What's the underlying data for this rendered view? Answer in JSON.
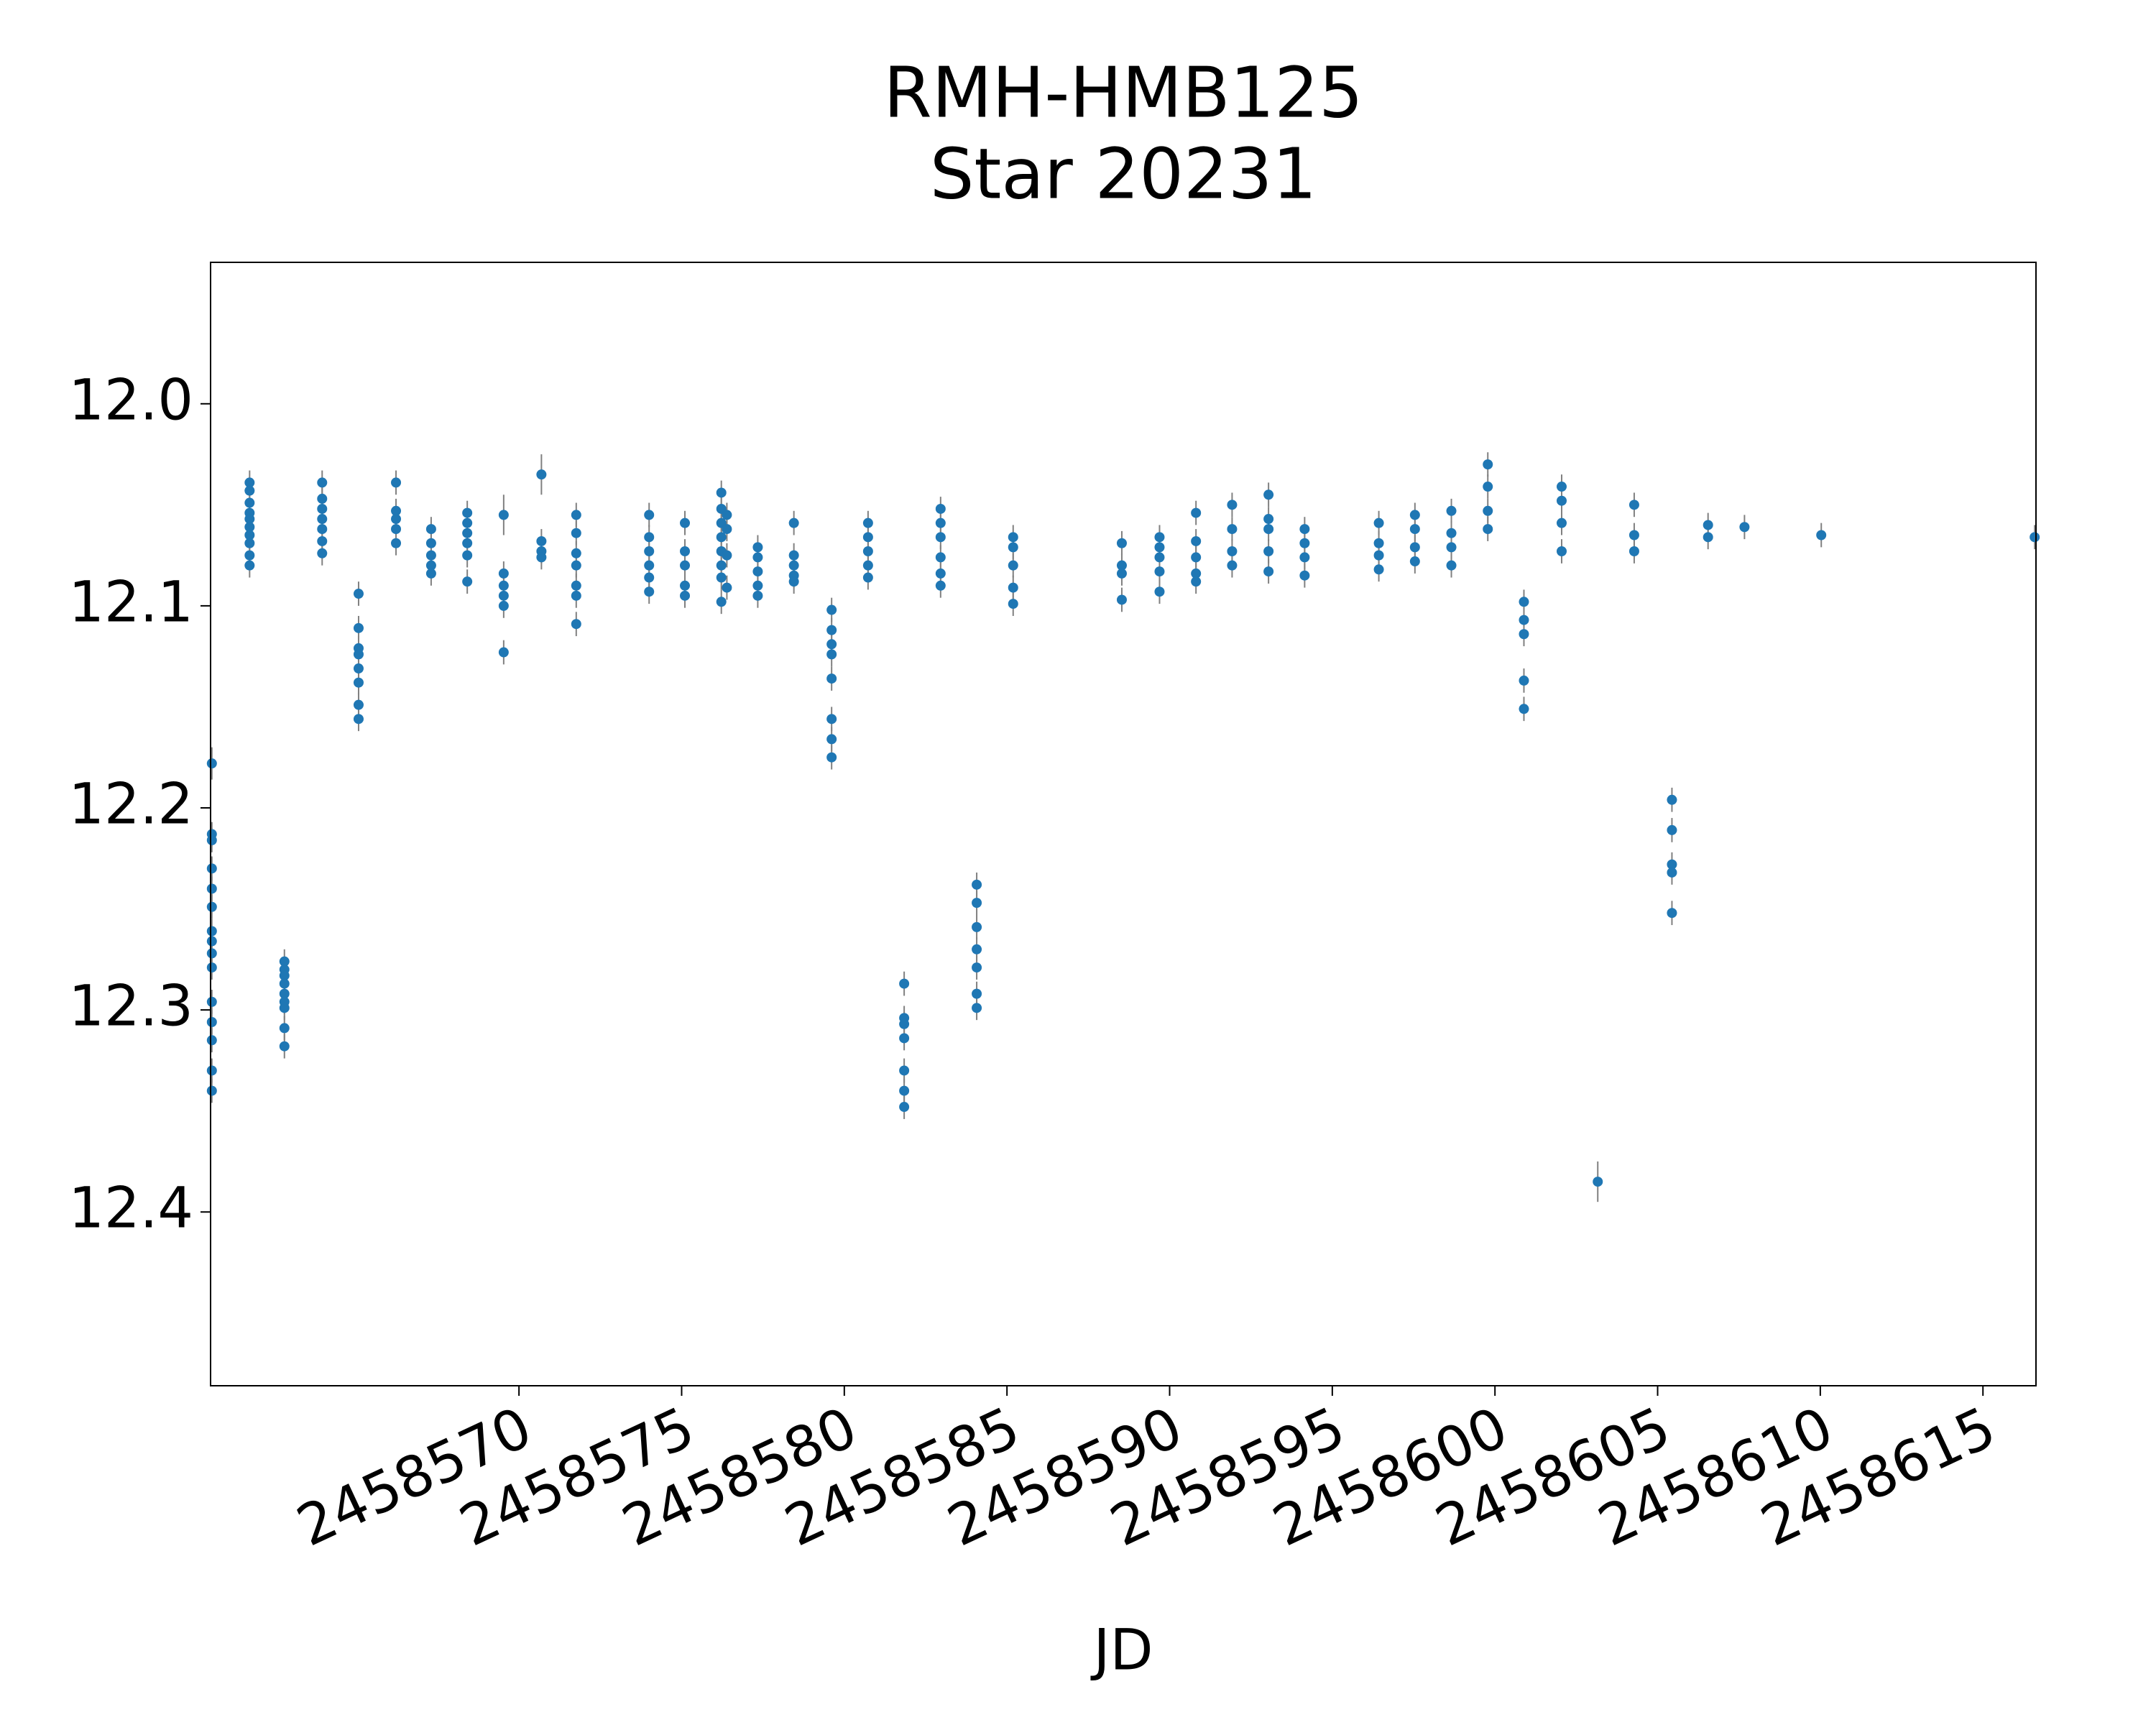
{
  "chart_data": {
    "type": "errorbar-scatter",
    "title": [
      "RMH-HMB125",
      "Star 20231"
    ],
    "x_label": "JD",
    "xlim": [
      2458560.52,
      2458616.63
    ],
    "xticks": [
      2458570,
      2458575,
      2458580,
      2458585,
      2458590,
      2458595,
      2458600,
      2458605,
      2458610,
      2458615
    ],
    "ylim": [
      12.486,
      11.93
    ],
    "yticks": [
      12.0,
      12.1,
      12.2,
      12.3,
      12.4
    ],
    "yticklabels": [
      "12.0",
      "12.1",
      "12.2",
      "12.3",
      "12.4"
    ],
    "grid": false,
    "series": [
      {
        "color": "#1f77b4",
        "error_color": "#808080",
        "x": [
          2458560.56,
          2458560.56,
          2458560.56,
          2458560.56,
          2458560.56,
          2458560.56,
          2458560.56,
          2458560.56,
          2458560.56,
          2458560.56,
          2458560.56,
          2458560.56,
          2458560.56,
          2458560.56,
          2458560.56,
          2458561.72,
          2458561.72,
          2458561.72,
          2458561.72,
          2458561.72,
          2458561.72,
          2458561.72,
          2458561.72,
          2458561.72,
          2458561.72,
          2458562.79,
          2458562.79,
          2458562.79,
          2458562.79,
          2458562.79,
          2458562.79,
          2458562.79,
          2458562.79,
          2458562.79,
          2458563.95,
          2458563.95,
          2458563.95,
          2458563.95,
          2458563.95,
          2458563.95,
          2458563.95,
          2458565.07,
          2458565.07,
          2458565.07,
          2458565.07,
          2458565.07,
          2458565.07,
          2458565.07,
          2458565.07,
          2458566.22,
          2458566.22,
          2458566.22,
          2458566.22,
          2458566.22,
          2458567.3,
          2458567.3,
          2458567.3,
          2458567.3,
          2458567.3,
          2458568.41,
          2458568.41,
          2458568.41,
          2458568.41,
          2458568.41,
          2458568.41,
          2458569.53,
          2458569.53,
          2458569.53,
          2458569.53,
          2458569.53,
          2458569.53,
          2458570.69,
          2458570.69,
          2458570.69,
          2458570.69,
          2458571.76,
          2458571.76,
          2458571.76,
          2458571.76,
          2458571.76,
          2458571.76,
          2458571.76,
          2458574.0,
          2458574.0,
          2458574.0,
          2458574.0,
          2458574.0,
          2458574.0,
          2458575.1,
          2458575.1,
          2458575.1,
          2458575.1,
          2458575.1,
          2458576.22,
          2458576.22,
          2458576.22,
          2458576.22,
          2458576.22,
          2458576.22,
          2458576.22,
          2458576.22,
          2458576.39,
          2458576.39,
          2458576.39,
          2458576.39,
          2458577.34,
          2458577.34,
          2458577.34,
          2458577.34,
          2458577.34,
          2458578.45,
          2458578.45,
          2458578.45,
          2458578.45,
          2458578.45,
          2458579.61,
          2458579.61,
          2458579.61,
          2458579.61,
          2458579.61,
          2458579.61,
          2458579.61,
          2458579.61,
          2458580.73,
          2458580.73,
          2458580.73,
          2458580.73,
          2458580.73,
          2458581.84,
          2458581.84,
          2458581.84,
          2458581.84,
          2458581.84,
          2458581.84,
          2458581.84,
          2458582.96,
          2458582.96,
          2458582.96,
          2458582.96,
          2458582.96,
          2458582.96,
          2458584.07,
          2458584.07,
          2458584.07,
          2458584.07,
          2458584.07,
          2458584.07,
          2458584.07,
          2458585.19,
          2458585.19,
          2458585.19,
          2458585.19,
          2458585.19,
          2458588.53,
          2458588.53,
          2458588.53,
          2458588.53,
          2458589.69,
          2458589.69,
          2458589.69,
          2458589.69,
          2458589.69,
          2458590.81,
          2458590.81,
          2458590.81,
          2458590.81,
          2458590.81,
          2458591.92,
          2458591.92,
          2458591.92,
          2458591.92,
          2458593.04,
          2458593.04,
          2458593.04,
          2458593.04,
          2458593.04,
          2458594.15,
          2458594.15,
          2458594.15,
          2458594.15,
          2458596.43,
          2458596.43,
          2458596.43,
          2458596.43,
          2458597.54,
          2458597.54,
          2458597.54,
          2458597.54,
          2458598.66,
          2458598.66,
          2458598.66,
          2458598.66,
          2458599.78,
          2458599.78,
          2458599.78,
          2458599.78,
          2458600.89,
          2458600.89,
          2458600.89,
          2458600.89,
          2458600.89,
          2458602.05,
          2458602.05,
          2458602.05,
          2458602.05,
          2458603.16,
          2458604.28,
          2458604.28,
          2458604.28,
          2458605.44,
          2458605.44,
          2458605.44,
          2458605.44,
          2458605.44,
          2458606.55,
          2458606.55,
          2458607.67,
          2458610.03,
          2458616.59
        ],
        "values": [
          12.178,
          12.213,
          12.216,
          12.23,
          12.24,
          12.249,
          12.261,
          12.266,
          12.272,
          12.279,
          12.296,
          12.306,
          12.315,
          12.33,
          12.34,
          12.039,
          12.043,
          12.049,
          12.054,
          12.057,
          12.061,
          12.065,
          12.069,
          12.075,
          12.08,
          12.276,
          12.28,
          12.283,
          12.287,
          12.292,
          12.296,
          12.299,
          12.309,
          12.318,
          12.039,
          12.047,
          12.052,
          12.057,
          12.062,
          12.068,
          12.074,
          12.094,
          12.111,
          12.121,
          12.124,
          12.131,
          12.138,
          12.149,
          12.156,
          12.039,
          12.053,
          12.057,
          12.062,
          12.069,
          12.062,
          12.069,
          12.075,
          12.08,
          12.084,
          12.054,
          12.059,
          12.064,
          12.069,
          12.075,
          12.088,
          12.055,
          12.084,
          12.09,
          12.095,
          12.1,
          12.123,
          12.035,
          12.068,
          12.073,
          12.076,
          12.055,
          12.064,
          12.074,
          12.08,
          12.09,
          12.095,
          12.109,
          12.055,
          12.066,
          12.073,
          12.08,
          12.086,
          12.093,
          12.059,
          12.073,
          12.08,
          12.09,
          12.095,
          12.044,
          12.052,
          12.059,
          12.066,
          12.073,
          12.08,
          12.086,
          12.098,
          12.055,
          12.062,
          12.075,
          12.091,
          12.071,
          12.076,
          12.083,
          12.09,
          12.095,
          12.059,
          12.075,
          12.08,
          12.085,
          12.088,
          12.102,
          12.112,
          12.119,
          12.124,
          12.136,
          12.156,
          12.166,
          12.175,
          12.059,
          12.066,
          12.073,
          12.08,
          12.086,
          12.287,
          12.304,
          12.307,
          12.314,
          12.33,
          12.34,
          12.348,
          12.052,
          12.059,
          12.066,
          12.076,
          12.084,
          12.09,
          12.238,
          12.247,
          12.259,
          12.27,
          12.279,
          12.292,
          12.299,
          12.066,
          12.071,
          12.08,
          12.091,
          12.099,
          12.069,
          12.08,
          12.084,
          12.097,
          12.066,
          12.071,
          12.076,
          12.083,
          12.093,
          12.054,
          12.068,
          12.076,
          12.084,
          12.088,
          12.05,
          12.062,
          12.073,
          12.08,
          12.045,
          12.057,
          12.062,
          12.073,
          12.083,
          12.062,
          12.069,
          12.076,
          12.085,
          12.059,
          12.069,
          12.075,
          12.082,
          12.055,
          12.062,
          12.071,
          12.078,
          12.053,
          12.064,
          12.071,
          12.08,
          12.03,
          12.041,
          12.053,
          12.062,
          12.098,
          12.107,
          12.114,
          12.137,
          12.151,
          12.041,
          12.048,
          12.059,
          12.073,
          12.385,
          12.05,
          12.065,
          12.073,
          12.196,
          12.211,
          12.228,
          12.232,
          12.252,
          12.06,
          12.066,
          12.061,
          12.065,
          12.066
        ],
        "errors": [
          0.008,
          0.006,
          0.006,
          0.006,
          0.006,
          0.006,
          0.006,
          0.006,
          0.006,
          0.006,
          0.006,
          0.006,
          0.006,
          0.006,
          0.006,
          0.006,
          0.006,
          0.006,
          0.006,
          0.006,
          0.006,
          0.006,
          0.006,
          0.006,
          0.006,
          0.006,
          0.006,
          0.006,
          0.006,
          0.006,
          0.006,
          0.006,
          0.006,
          0.006,
          0.006,
          0.006,
          0.006,
          0.006,
          0.006,
          0.006,
          0.006,
          0.006,
          0.006,
          0.006,
          0.006,
          0.006,
          0.006,
          0.006,
          0.006,
          0.006,
          0.006,
          0.006,
          0.006,
          0.006,
          0.006,
          0.006,
          0.006,
          0.006,
          0.006,
          0.006,
          0.006,
          0.006,
          0.006,
          0.006,
          0.006,
          0.01,
          0.006,
          0.006,
          0.006,
          0.006,
          0.006,
          0.01,
          0.006,
          0.006,
          0.006,
          0.006,
          0.006,
          0.006,
          0.006,
          0.006,
          0.006,
          0.006,
          0.006,
          0.006,
          0.006,
          0.006,
          0.006,
          0.006,
          0.006,
          0.006,
          0.006,
          0.006,
          0.006,
          0.006,
          0.006,
          0.006,
          0.006,
          0.006,
          0.006,
          0.006,
          0.006,
          0.006,
          0.006,
          0.006,
          0.006,
          0.006,
          0.006,
          0.006,
          0.006,
          0.006,
          0.006,
          0.006,
          0.006,
          0.006,
          0.006,
          0.006,
          0.006,
          0.006,
          0.006,
          0.006,
          0.006,
          0.006,
          0.006,
          0.006,
          0.006,
          0.006,
          0.006,
          0.006,
          0.006,
          0.006,
          0.006,
          0.006,
          0.006,
          0.006,
          0.006,
          0.006,
          0.006,
          0.006,
          0.006,
          0.006,
          0.006,
          0.006,
          0.006,
          0.006,
          0.006,
          0.006,
          0.006,
          0.006,
          0.006,
          0.006,
          0.006,
          0.006,
          0.006,
          0.006,
          0.006,
          0.006,
          0.006,
          0.006,
          0.006,
          0.006,
          0.006,
          0.006,
          0.006,
          0.006,
          0.006,
          0.006,
          0.006,
          0.006,
          0.006,
          0.006,
          0.006,
          0.006,
          0.006,
          0.006,
          0.006,
          0.006,
          0.006,
          0.006,
          0.006,
          0.006,
          0.006,
          0.006,
          0.006,
          0.006,
          0.006,
          0.006,
          0.006,
          0.006,
          0.006,
          0.006,
          0.006,
          0.006,
          0.006,
          0.006,
          0.006,
          0.006,
          0.006,
          0.006,
          0.006,
          0.006,
          0.006,
          0.006,
          0.006,
          0.006,
          0.006,
          0.01,
          0.006,
          0.006,
          0.006,
          0.006,
          0.006,
          0.006,
          0.006,
          0.006,
          0.006,
          0.006,
          0.006,
          0.006,
          0.006
        ]
      }
    ]
  }
}
